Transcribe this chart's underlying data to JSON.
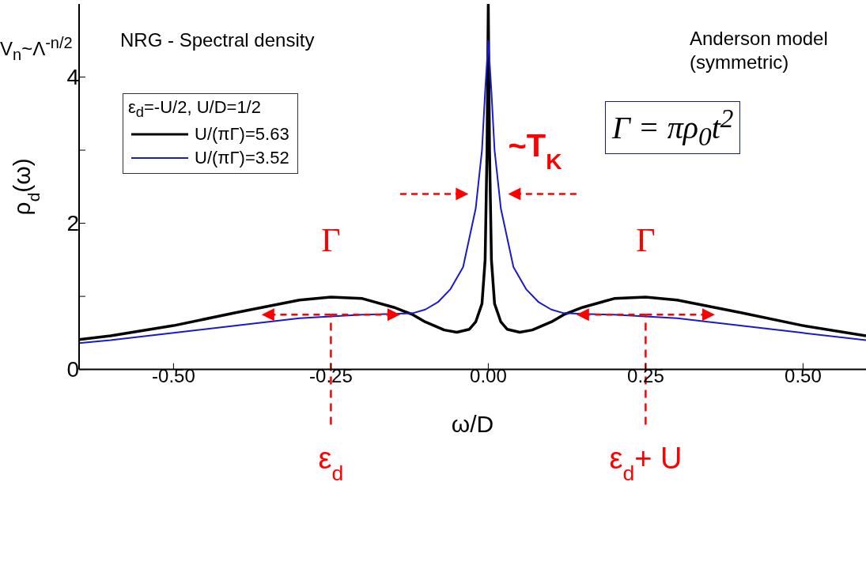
{
  "chart_data": {
    "type": "line",
    "xlabel": "ω/D",
    "ylabel": "ρ$_{d}$(ω)",
    "legend_title": "ε$_{d}$=-U/2, U/D=1/2",
    "legend": "top left",
    "grid": false,
    "xlim": [
      -0.65,
      0.6
    ],
    "ylim": [
      0,
      5
    ],
    "xticks": [
      {
        "value": -0.5,
        "label": "-0.50"
      },
      {
        "value": -0.25,
        "label": "-0.25"
      },
      {
        "value": 0,
        "label": "0.00"
      },
      {
        "value": 0.25,
        "label": "0.25"
      },
      {
        "value": 0.5,
        "label": "0.50"
      }
    ],
    "yticks": [
      0,
      {
        "value": 1,
        "label": null
      },
      2,
      {
        "value": 3,
        "label": null
      },
      4
    ],
    "series": [
      {
        "name": "U/(πΓ)=5.63",
        "color": "#000000",
        "x": [
          -0.65,
          -0.6,
          -0.5,
          -0.4,
          -0.3,
          -0.25,
          -0.2,
          -0.15,
          -0.12,
          -0.1,
          -0.07,
          -0.05,
          -0.03,
          -0.02,
          -0.01,
          -0.005,
          -0.002,
          0,
          0.002,
          0.005,
          0.01,
          0.02,
          0.03,
          0.05,
          0.07,
          0.1,
          0.12,
          0.15,
          0.2,
          0.25,
          0.3,
          0.4,
          0.5,
          0.6
        ],
        "values": [
          0.41,
          0.46,
          0.6,
          0.78,
          0.95,
          0.99,
          0.97,
          0.85,
          0.75,
          0.65,
          0.54,
          0.51,
          0.55,
          0.65,
          0.9,
          1.5,
          3,
          5,
          3,
          1.5,
          0.9,
          0.65,
          0.55,
          0.51,
          0.54,
          0.65,
          0.75,
          0.85,
          0.97,
          0.99,
          0.95,
          0.78,
          0.6,
          0.46
        ]
      },
      {
        "name": "U/(πΓ)=3.52",
        "color": "#1a1acc",
        "x": [
          -0.65,
          -0.6,
          -0.5,
          -0.4,
          -0.3,
          -0.2,
          -0.15,
          -0.12,
          -0.1,
          -0.08,
          -0.06,
          -0.04,
          -0.02,
          -0.01,
          -0.005,
          0,
          0.005,
          0.01,
          0.02,
          0.04,
          0.06,
          0.08,
          0.1,
          0.12,
          0.15,
          0.2,
          0.3,
          0.4,
          0.5,
          0.6
        ],
        "values": [
          0.36,
          0.4,
          0.5,
          0.6,
          0.7,
          0.75,
          0.76,
          0.77,
          0.82,
          0.92,
          1.1,
          1.4,
          2.2,
          3,
          3.8,
          4.5,
          3.8,
          3,
          2.2,
          1.4,
          1.1,
          0.92,
          0.82,
          0.77,
          0.76,
          0.75,
          0.7,
          0.6,
          0.5,
          0.4
        ]
      }
    ],
    "ref_lines": [
      {
        "axis": "x",
        "value": -0.25,
        "label": "ε$_{d}$",
        "color": "#ff0000",
        "line_style": "dashed"
      },
      {
        "axis": "x",
        "value": 0.25,
        "label": "ε$_{d}$+ U",
        "color": "#ff0000",
        "line_style": "dashed"
      }
    ],
    "annotations": [
      "NRG - Spectral density",
      "Anderson model\n(symmetric)",
      "Γ = πρ$_{0}$t$^{2}$",
      "V$_{n}$~Λ$^{-n/2}$",
      {
        "text": "~T$_{K}$",
        "x": 0,
        "y": 2.4
      },
      {
        "text": "Γ",
        "x": -0.25,
        "y": 0.75
      },
      {
        "text": "Γ",
        "x": 0.25,
        "y": 0.75
      }
    ]
  }
}
